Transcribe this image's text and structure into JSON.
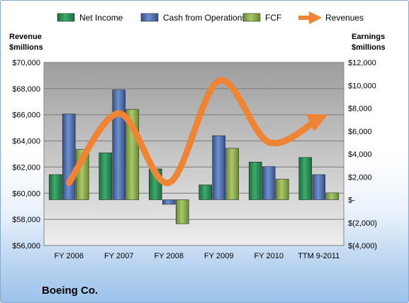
{
  "chart_data": {
    "type": "bar",
    "categories": [
      "FY 2006",
      "FY 2007",
      "FY 2008",
      "FY 2009",
      "FY 2010",
      "TTM 9-2011"
    ],
    "series": [
      {
        "name": "Net Income",
        "axis": "right",
        "color": "#2e8b57",
        "values": [
          2200,
          4100,
          2700,
          1300,
          3300,
          3700
        ]
      },
      {
        "name": "Cash from Operations",
        "axis": "right",
        "color": "#4f6fb0",
        "values": [
          7500,
          9600,
          -400,
          5600,
          2900,
          2200
        ]
      },
      {
        "name": "FCF",
        "axis": "right",
        "color": "#8fb050",
        "values": [
          4400,
          7900,
          -2100,
          4500,
          1800,
          600
        ]
      },
      {
        "name": "Revenues",
        "type": "line",
        "axis": "left",
        "color": "#ee8434",
        "values": [
          60800,
          66100,
          60800,
          68600,
          63900,
          65700
        ]
      }
    ],
    "left_axis": {
      "title": "Revenue\n$millions",
      "ylim": [
        56000,
        70000
      ],
      "ticks": [
        "$56,000",
        "$58,000",
        "$60,000",
        "$62,000",
        "$64,000",
        "$66,000",
        "$68,000",
        "$70,000"
      ]
    },
    "right_axis": {
      "title": "Earnings\n$millions",
      "ylim": [
        -4000,
        12000
      ],
      "ticks": [
        "$(4,000)",
        "$(2,000)",
        "$-",
        "$2,000",
        "$4,000",
        "$6,000",
        "$8,000",
        "$10,000",
        "$12,000"
      ]
    },
    "grid": true,
    "legend": "top",
    "annotation": "Boeing Co."
  }
}
